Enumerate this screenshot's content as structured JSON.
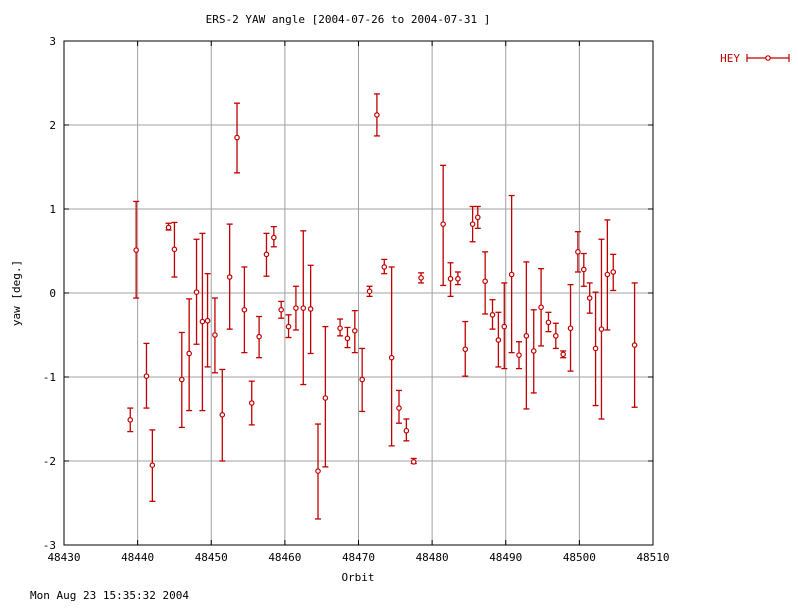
{
  "chart_data": {
    "type": "scatter",
    "title": "ERS-2 YAW angle [2004-07-26 to 2004-07-31 ]",
    "xlabel": "Orbit",
    "ylabel": "yaw [deg.]",
    "xlim": [
      48430,
      48510
    ],
    "ylim": [
      -3,
      3
    ],
    "xticks": [
      48430,
      48440,
      48450,
      48460,
      48470,
      48480,
      48490,
      48500,
      48510
    ],
    "yticks": [
      -3,
      -2,
      -1,
      0,
      1,
      2,
      3
    ],
    "xtick_labels": [
      "48430",
      "48440",
      "48450",
      "48460",
      "48470",
      "48480",
      "48490",
      "48500",
      "48510"
    ],
    "ytick_labels": [
      "-3",
      "-2",
      "-1",
      "0",
      "1",
      "2",
      "3"
    ],
    "grid": true,
    "legend_position": "top-right",
    "timestamp": "Mon Aug 23 15:35:32 2004",
    "colors": {
      "series": "#c00000",
      "grid": "#a0a0a0",
      "axis": "#000000"
    },
    "series": [
      {
        "name": "HEY",
        "points": [
          {
            "x": 48439,
            "y": -1.51,
            "ylow": -1.65,
            "yhigh": -1.37
          },
          {
            "x": 48439.8,
            "y": 0.51,
            "ylow": -0.06,
            "yhigh": 1.09
          },
          {
            "x": 48441.2,
            "y": -0.99,
            "ylow": -1.37,
            "yhigh": -0.6
          },
          {
            "x": 48442,
            "y": -2.05,
            "ylow": -2.48,
            "yhigh": -1.63
          },
          {
            "x": 48444.2,
            "y": 0.78,
            "ylow": 0.75,
            "yhigh": 0.83
          },
          {
            "x": 48445,
            "y": 0.52,
            "ylow": 0.19,
            "yhigh": 0.84
          },
          {
            "x": 48446,
            "y": -1.03,
            "ylow": -1.6,
            "yhigh": -0.47
          },
          {
            "x": 48447,
            "y": -0.72,
            "ylow": -1.4,
            "yhigh": -0.07
          },
          {
            "x": 48448,
            "y": 0.01,
            "ylow": -0.61,
            "yhigh": 0.64
          },
          {
            "x": 48448.8,
            "y": -0.34,
            "ylow": -1.4,
            "yhigh": 0.71
          },
          {
            "x": 48449.5,
            "y": -0.33,
            "ylow": -0.88,
            "yhigh": 0.23
          },
          {
            "x": 48450.5,
            "y": -0.5,
            "ylow": -0.95,
            "yhigh": -0.06
          },
          {
            "x": 48451.5,
            "y": -1.45,
            "ylow": -2.0,
            "yhigh": -0.91
          },
          {
            "x": 48452.5,
            "y": 0.19,
            "ylow": -0.43,
            "yhigh": 0.82
          },
          {
            "x": 48453.5,
            "y": 1.85,
            "ylow": 1.43,
            "yhigh": 2.26
          },
          {
            "x": 48454.5,
            "y": -0.2,
            "ylow": -0.71,
            "yhigh": 0.31
          },
          {
            "x": 48455.5,
            "y": -1.31,
            "ylow": -1.57,
            "yhigh": -1.05
          },
          {
            "x": 48456.5,
            "y": -0.52,
            "ylow": -0.77,
            "yhigh": -0.28
          },
          {
            "x": 48457.5,
            "y": 0.46,
            "ylow": 0.2,
            "yhigh": 0.71
          },
          {
            "x": 48458.5,
            "y": 0.66,
            "ylow": 0.55,
            "yhigh": 0.79
          },
          {
            "x": 48459.5,
            "y": -0.2,
            "ylow": -0.3,
            "yhigh": -0.1
          },
          {
            "x": 48460.5,
            "y": -0.4,
            "ylow": -0.53,
            "yhigh": -0.26
          },
          {
            "x": 48461.5,
            "y": -0.18,
            "ylow": -0.44,
            "yhigh": 0.08
          },
          {
            "x": 48462.5,
            "y": -0.18,
            "ylow": -1.09,
            "yhigh": 0.74
          },
          {
            "x": 48463.5,
            "y": -0.19,
            "ylow": -0.72,
            "yhigh": 0.33
          },
          {
            "x": 48464.5,
            "y": -2.12,
            "ylow": -2.69,
            "yhigh": -1.56
          },
          {
            "x": 48465.5,
            "y": -1.25,
            "ylow": -2.07,
            "yhigh": -0.4
          },
          {
            "x": 48467.5,
            "y": -0.42,
            "ylow": -0.51,
            "yhigh": -0.31
          },
          {
            "x": 48468.5,
            "y": -0.54,
            "ylow": -0.65,
            "yhigh": -0.41
          },
          {
            "x": 48469.5,
            "y": -0.45,
            "ylow": -0.71,
            "yhigh": -0.21
          },
          {
            "x": 48470.5,
            "y": -1.03,
            "ylow": -1.41,
            "yhigh": -0.66
          },
          {
            "x": 48471.5,
            "y": 0.02,
            "ylow": -0.04,
            "yhigh": 0.08
          },
          {
            "x": 48472.5,
            "y": 2.12,
            "ylow": 1.87,
            "yhigh": 2.37
          },
          {
            "x": 48473.5,
            "y": 0.31,
            "ylow": 0.23,
            "yhigh": 0.4
          },
          {
            "x": 48474.5,
            "y": -0.77,
            "ylow": -1.82,
            "yhigh": 0.31
          },
          {
            "x": 48475.5,
            "y": -1.37,
            "ylow": -1.55,
            "yhigh": -1.16
          },
          {
            "x": 48476.5,
            "y": -1.64,
            "ylow": -1.76,
            "yhigh": -1.5
          },
          {
            "x": 48477.5,
            "y": -2.01,
            "ylow": -2.03,
            "yhigh": -1.97
          },
          {
            "x": 48478.5,
            "y": 0.18,
            "ylow": 0.12,
            "yhigh": 0.24
          },
          {
            "x": 48481.5,
            "y": 0.82,
            "ylow": 0.09,
            "yhigh": 1.52
          },
          {
            "x": 48482.5,
            "y": 0.17,
            "ylow": -0.04,
            "yhigh": 0.36
          },
          {
            "x": 48483.5,
            "y": 0.17,
            "ylow": 0.1,
            "yhigh": 0.25
          },
          {
            "x": 48484.5,
            "y": -0.67,
            "ylow": -0.99,
            "yhigh": -0.34
          },
          {
            "x": 48485.5,
            "y": 0.82,
            "ylow": 0.61,
            "yhigh": 1.03
          },
          {
            "x": 48486.2,
            "y": 0.9,
            "ylow": 0.77,
            "yhigh": 1.03
          },
          {
            "x": 48487.2,
            "y": 0.14,
            "ylow": -0.25,
            "yhigh": 0.49
          },
          {
            "x": 48488.2,
            "y": -0.26,
            "ylow": -0.43,
            "yhigh": -0.08
          },
          {
            "x": 48489,
            "y": -0.56,
            "ylow": -0.88,
            "yhigh": -0.23
          },
          {
            "x": 48489.8,
            "y": -0.4,
            "ylow": -0.9,
            "yhigh": 0.12
          },
          {
            "x": 48490.8,
            "y": 0.22,
            "ylow": -0.71,
            "yhigh": 1.16
          },
          {
            "x": 48491.8,
            "y": -0.74,
            "ylow": -0.9,
            "yhigh": -0.58
          },
          {
            "x": 48492.8,
            "y": -0.51,
            "ylow": -1.38,
            "yhigh": 0.37
          },
          {
            "x": 48493.8,
            "y": -0.69,
            "ylow": -1.19,
            "yhigh": -0.2
          },
          {
            "x": 48494.8,
            "y": -0.17,
            "ylow": -0.63,
            "yhigh": 0.29
          },
          {
            "x": 48495.8,
            "y": -0.35,
            "ylow": -0.46,
            "yhigh": -0.23
          },
          {
            "x": 48496.8,
            "y": -0.51,
            "ylow": -0.66,
            "yhigh": -0.36
          },
          {
            "x": 48497.8,
            "y": -0.73,
            "ylow": -0.77,
            "yhigh": -0.69
          },
          {
            "x": 48498.8,
            "y": -0.42,
            "ylow": -0.93,
            "yhigh": 0.1
          },
          {
            "x": 48499.8,
            "y": 0.49,
            "ylow": 0.25,
            "yhigh": 0.73
          },
          {
            "x": 48500.6,
            "y": 0.28,
            "ylow": 0.08,
            "yhigh": 0.47
          },
          {
            "x": 48501.4,
            "y": -0.06,
            "ylow": -0.24,
            "yhigh": 0.12
          },
          {
            "x": 48502.2,
            "y": -0.66,
            "ylow": -1.34,
            "yhigh": 0.01
          },
          {
            "x": 48503,
            "y": -0.43,
            "ylow": -1.5,
            "yhigh": 0.64
          },
          {
            "x": 48503.8,
            "y": 0.22,
            "ylow": -0.44,
            "yhigh": 0.87
          },
          {
            "x": 48504.6,
            "y": 0.25,
            "ylow": 0.03,
            "yhigh": 0.46
          },
          {
            "x": 48507.5,
            "y": -0.62,
            "ylow": -1.36,
            "yhigh": 0.12
          }
        ]
      }
    ]
  }
}
